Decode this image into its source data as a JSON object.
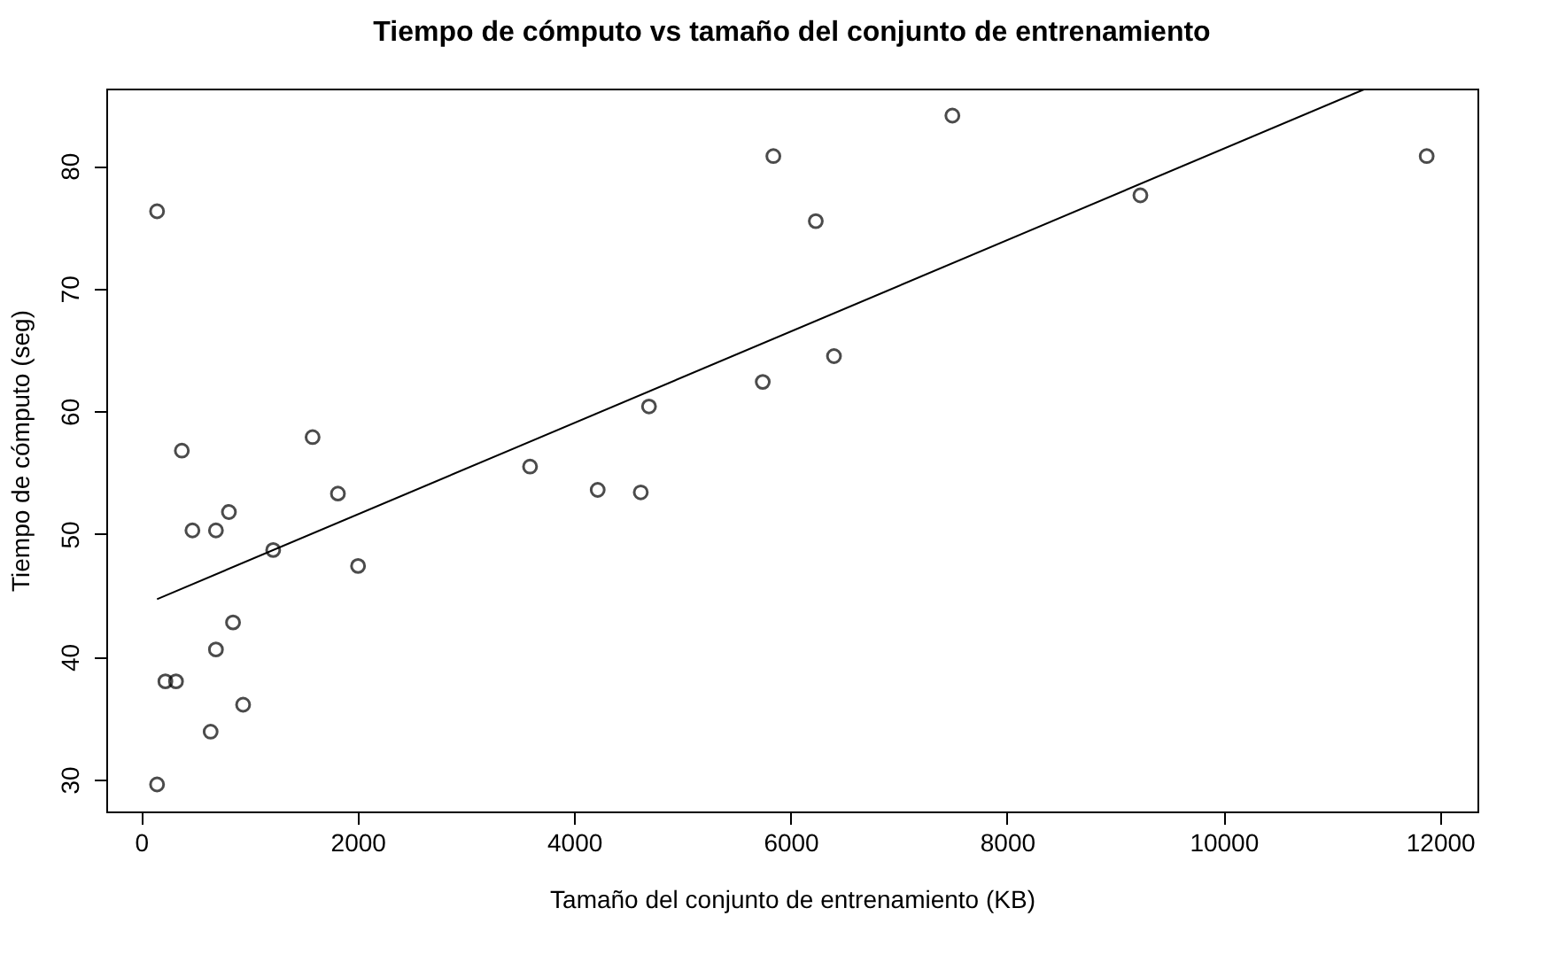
{
  "chart_data": {
    "type": "scatter",
    "title": "Tiempo de cómputo vs tamaño del conjunto de entrenamiento",
    "xlabel": "Tamaño del conjunto de entrenamiento (KB)",
    "ylabel": "Tiempo de cómputo (seg)",
    "xlim": [
      -322,
      12346
    ],
    "ylim": [
      27.4,
      86.3
    ],
    "xticks": [
      0,
      2000,
      4000,
      6000,
      8000,
      10000,
      12000
    ],
    "yticks": [
      30,
      40,
      50,
      60,
      70,
      80
    ],
    "grid": false,
    "series": [
      {
        "marker": "circle",
        "color": "#000000",
        "x": [
          147,
          147,
          224,
          322,
          376,
          474,
          691,
          811,
          691,
          849,
          642,
          942,
          1220,
          1584,
          1818,
          2004,
          3593,
          4692,
          4218,
          4616,
          5743,
          6401,
          6233,
          5841,
          7495,
          9232,
          11877
        ],
        "values": [
          76.3,
          29.6,
          38,
          38,
          56.8,
          50.3,
          50.3,
          51.8,
          40.6,
          42.8,
          33.9,
          36.1,
          48.7,
          57.9,
          53.3,
          47.4,
          55.5,
          60.4,
          53.6,
          53.4,
          62.4,
          64.5,
          75.5,
          80.8,
          84.1,
          77.6,
          80.8
        ]
      },
      {
        "type": "line",
        "marker": "none",
        "color": "#000000",
        "x": [
          147,
          11317
        ],
        "values": [
          44.7,
          86.3
        ]
      }
    ]
  }
}
